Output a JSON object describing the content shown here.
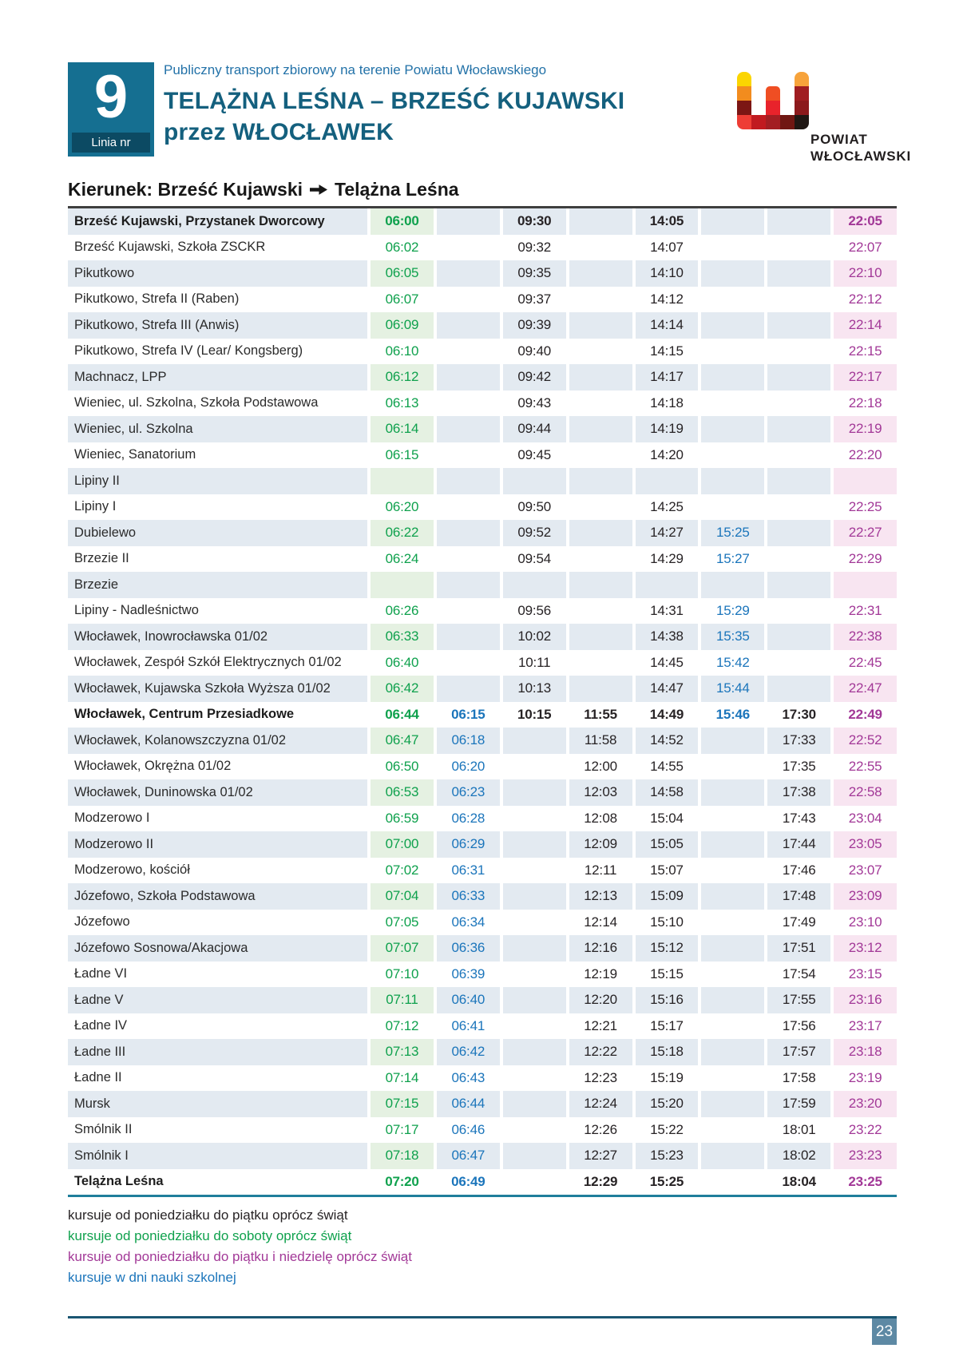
{
  "header": {
    "line_label": "Linia nr",
    "line_number": "9",
    "small_title": "Publiczny transport zbiorowy na terenie Powiatu Włocławskiego",
    "title_line1": "TELĄŻNA LEŚNA – BRZEŚĆ KUJAWSKI",
    "title_line2": "przez WŁOCŁAWEK",
    "logo_text_line1": "POWIAT",
    "logo_text_line2": "WŁOCŁAWSKI"
  },
  "logo_cells": [
    {
      "row": 1,
      "col": 1,
      "color": "#FBD501",
      "round": "8px 8px 0 0"
    },
    {
      "row": 1,
      "col": 5,
      "color": "#F7A33B",
      "round": "8px 8px 0 0"
    },
    {
      "row": 2,
      "col": 1,
      "color": "#F28C1E",
      "round": "0"
    },
    {
      "row": 2,
      "col": 3,
      "color": "#EF4E23",
      "round": "5px 5px 0 0"
    },
    {
      "row": 2,
      "col": 5,
      "color": "#A01D21",
      "round": "0"
    },
    {
      "row": 3,
      "col": 1,
      "color": "#7C1614",
      "round": "0"
    },
    {
      "row": 3,
      "col": 3,
      "color": "#E8232B",
      "round": "0"
    },
    {
      "row": 3,
      "col": 5,
      "color": "#8C191C",
      "round": "0"
    },
    {
      "row": 4,
      "col": 1,
      "color": "#EE3D35",
      "round": "0 0 0 8px"
    },
    {
      "row": 4,
      "col": 2,
      "color": "#C11A20",
      "round": "0"
    },
    {
      "row": 4,
      "col": 3,
      "color": "#A31E23",
      "round": "0"
    },
    {
      "row": 4,
      "col": 4,
      "color": "#701713",
      "round": "0"
    },
    {
      "row": 4,
      "col": 5,
      "color": "#201714",
      "round": "0 0 8px 0"
    }
  ],
  "direction": {
    "part1": "Kierunek: Brześć Kujawski",
    "part2": "Telążna Leśna"
  },
  "timetable": {
    "column_styles": [
      "saturday",
      "school",
      "weekday",
      "weekday",
      "weekday",
      "school",
      "weekday",
      "sunday"
    ],
    "rows": [
      {
        "stop": "Brześć Kujawski, Przystanek Dworcowy",
        "bold": true,
        "times": [
          "06:00",
          "",
          "09:30",
          "",
          "14:05",
          "",
          "",
          "22:05"
        ]
      },
      {
        "stop": "Brześć Kujawski, Szkoła ZSCKR",
        "bold": false,
        "times": [
          "06:02",
          "",
          "09:32",
          "",
          "14:07",
          "",
          "",
          "22:07"
        ]
      },
      {
        "stop": "Pikutkowo",
        "bold": false,
        "times": [
          "06:05",
          "",
          "09:35",
          "",
          "14:10",
          "",
          "",
          "22:10"
        ]
      },
      {
        "stop": "Pikutkowo, Strefa II (Raben)",
        "bold": false,
        "times": [
          "06:07",
          "",
          "09:37",
          "",
          "14:12",
          "",
          "",
          "22:12"
        ]
      },
      {
        "stop": "Pikutkowo, Strefa III (Anwis)",
        "bold": false,
        "times": [
          "06:09",
          "",
          "09:39",
          "",
          "14:14",
          "",
          "",
          "22:14"
        ]
      },
      {
        "stop": "Pikutkowo, Strefa IV (Lear/ Kongsberg)",
        "bold": false,
        "times": [
          "06:10",
          "",
          "09:40",
          "",
          "14:15",
          "",
          "",
          "22:15"
        ]
      },
      {
        "stop": "Machnacz, LPP",
        "bold": false,
        "times": [
          "06:12",
          "",
          "09:42",
          "",
          "14:17",
          "",
          "",
          "22:17"
        ]
      },
      {
        "stop": "Wieniec, ul. Szkolna, Szkoła Podstawowa",
        "bold": false,
        "times": [
          "06:13",
          "",
          "09:43",
          "",
          "14:18",
          "",
          "",
          "22:18"
        ]
      },
      {
        "stop": "Wieniec, ul. Szkolna",
        "bold": false,
        "times": [
          "06:14",
          "",
          "09:44",
          "",
          "14:19",
          "",
          "",
          "22:19"
        ]
      },
      {
        "stop": "Wieniec, Sanatorium",
        "bold": false,
        "times": [
          "06:15",
          "",
          "09:45",
          "",
          "14:20",
          "",
          "",
          "22:20"
        ]
      },
      {
        "stop": "Lipiny II",
        "bold": false,
        "times": [
          "",
          "",
          "",
          "",
          "",
          "",
          "",
          ""
        ]
      },
      {
        "stop": "Lipiny I",
        "bold": false,
        "times": [
          "06:20",
          "",
          "09:50",
          "",
          "14:25",
          "",
          "",
          "22:25"
        ]
      },
      {
        "stop": "Dubielewo",
        "bold": false,
        "times": [
          "06:22",
          "",
          "09:52",
          "",
          "14:27",
          "15:25",
          "",
          "22:27"
        ]
      },
      {
        "stop": "Brzezie II",
        "bold": false,
        "times": [
          "06:24",
          "",
          "09:54",
          "",
          "14:29",
          "15:27",
          "",
          "22:29"
        ]
      },
      {
        "stop": "Brzezie",
        "bold": false,
        "times": [
          "",
          "",
          "",
          "",
          "",
          "",
          "",
          ""
        ]
      },
      {
        "stop": "Lipiny - Nadleśnictwo",
        "bold": false,
        "times": [
          "06:26",
          "",
          "09:56",
          "",
          "14:31",
          "15:29",
          "",
          "22:31"
        ]
      },
      {
        "stop": "Włocławek, Inowrocławska 01/02",
        "bold": false,
        "times": [
          "06:33",
          "",
          "10:02",
          "",
          "14:38",
          "15:35",
          "",
          "22:38"
        ]
      },
      {
        "stop": "Włocławek, Zespół Szkół Elektrycznych 01/02",
        "bold": false,
        "times": [
          "06:40",
          "",
          "10:11",
          "",
          "14:45",
          "15:42",
          "",
          "22:45"
        ]
      },
      {
        "stop": "Włocławek, Kujawska Szkoła Wyższa 01/02",
        "bold": false,
        "times": [
          "06:42",
          "",
          "10:13",
          "",
          "14:47",
          "15:44",
          "",
          "22:47"
        ]
      },
      {
        "stop": "Włocławek, Centrum Przesiadkowe",
        "bold": true,
        "times": [
          "06:44",
          "06:15",
          "10:15",
          "11:55",
          "14:49",
          "15:46",
          "17:30",
          "22:49"
        ]
      },
      {
        "stop": "Włocławek, Kolanowszczyzna 01/02",
        "bold": false,
        "times": [
          "06:47",
          "06:18",
          "",
          "11:58",
          "14:52",
          "",
          "17:33",
          "22:52"
        ]
      },
      {
        "stop": "Włocławek, Okrężna 01/02",
        "bold": false,
        "times": [
          "06:50",
          "06:20",
          "",
          "12:00",
          "14:55",
          "",
          "17:35",
          "22:55"
        ]
      },
      {
        "stop": "Włocławek, Duninowska 01/02",
        "bold": false,
        "times": [
          "06:53",
          "06:23",
          "",
          "12:03",
          "14:58",
          "",
          "17:38",
          "22:58"
        ]
      },
      {
        "stop": "Modzerowo I",
        "bold": false,
        "times": [
          "06:59",
          "06:28",
          "",
          "12:08",
          "15:04",
          "",
          "17:43",
          "23:04"
        ]
      },
      {
        "stop": "Modzerowo II",
        "bold": false,
        "times": [
          "07:00",
          "06:29",
          "",
          "12:09",
          "15:05",
          "",
          "17:44",
          "23:05"
        ]
      },
      {
        "stop": "Modzerowo, kościół",
        "bold": false,
        "times": [
          "07:02",
          "06:31",
          "",
          "12:11",
          "15:07",
          "",
          "17:46",
          "23:07"
        ]
      },
      {
        "stop": "Józefowo, Szkoła Podstawowa",
        "bold": false,
        "times": [
          "07:04",
          "06:33",
          "",
          "12:13",
          "15:09",
          "",
          "17:48",
          "23:09"
        ]
      },
      {
        "stop": "Józefowo",
        "bold": false,
        "times": [
          "07:05",
          "06:34",
          "",
          "12:14",
          "15:10",
          "",
          "17:49",
          "23:10"
        ]
      },
      {
        "stop": "Józefowo Sosnowa/Akacjowa",
        "bold": false,
        "times": [
          "07:07",
          "06:36",
          "",
          "12:16",
          "15:12",
          "",
          "17:51",
          "23:12"
        ]
      },
      {
        "stop": "Ładne VI",
        "bold": false,
        "times": [
          "07:10",
          "06:39",
          "",
          "12:19",
          "15:15",
          "",
          "17:54",
          "23:15"
        ]
      },
      {
        "stop": "Ładne V",
        "bold": false,
        "times": [
          "07:11",
          "06:40",
          "",
          "12:20",
          "15:16",
          "",
          "17:55",
          "23:16"
        ]
      },
      {
        "stop": "Ładne IV",
        "bold": false,
        "times": [
          "07:12",
          "06:41",
          "",
          "12:21",
          "15:17",
          "",
          "17:56",
          "23:17"
        ]
      },
      {
        "stop": "Ładne III",
        "bold": false,
        "times": [
          "07:13",
          "06:42",
          "",
          "12:22",
          "15:18",
          "",
          "17:57",
          "23:18"
        ]
      },
      {
        "stop": "Ładne II",
        "bold": false,
        "times": [
          "07:14",
          "06:43",
          "",
          "12:23",
          "15:19",
          "",
          "17:58",
          "23:19"
        ]
      },
      {
        "stop": "Mursk",
        "bold": false,
        "times": [
          "07:15",
          "06:44",
          "",
          "12:24",
          "15:20",
          "",
          "17:59",
          "23:20"
        ]
      },
      {
        "stop": "Smólnik II",
        "bold": false,
        "times": [
          "07:17",
          "06:46",
          "",
          "12:26",
          "15:22",
          "",
          "18:01",
          "23:22"
        ]
      },
      {
        "stop": "Smólnik I",
        "bold": false,
        "times": [
          "07:18",
          "06:47",
          "",
          "12:27",
          "15:23",
          "",
          "18:02",
          "23:23"
        ]
      },
      {
        "stop": "Telążna Leśna",
        "bold": true,
        "times": [
          "07:20",
          "06:49",
          "",
          "12:29",
          "15:25",
          "",
          "18:04",
          "23:25"
        ]
      }
    ]
  },
  "legend": [
    {
      "text": "kursuje od poniedziałku do piątku oprócz świąt",
      "style": "weekday"
    },
    {
      "text": "kursuje od poniedziałku do soboty oprócz świąt",
      "style": "saturday"
    },
    {
      "text": "kursuje od poniedziałku do piątku i niedzielę oprócz świąt",
      "style": "sunday"
    },
    {
      "text": "kursuje w dni nauki szkolnej",
      "style": "school"
    }
  ],
  "page_number": "23",
  "colors": {
    "accent_teal": "#156F91",
    "accent_teal_dark": "#0C4A63",
    "title_text": "#14607E",
    "subtitle_text": "#2372A8",
    "weekday_time": "#272325",
    "saturday_time_green": "#0FA14D",
    "school_time_blue": "#1B75BB",
    "sunday_time_magenta": "#A23897",
    "row_shade": "#E3EAF1",
    "saturday_col_shade": "#E5F1E2",
    "sunday_col_shade": "#F8E5F1",
    "table_top_border": "#3F3F3F",
    "table_bottom_border": "#1F7E9B",
    "footer_line": "#1A5672",
    "page_number_box": "#5D89A4"
  }
}
